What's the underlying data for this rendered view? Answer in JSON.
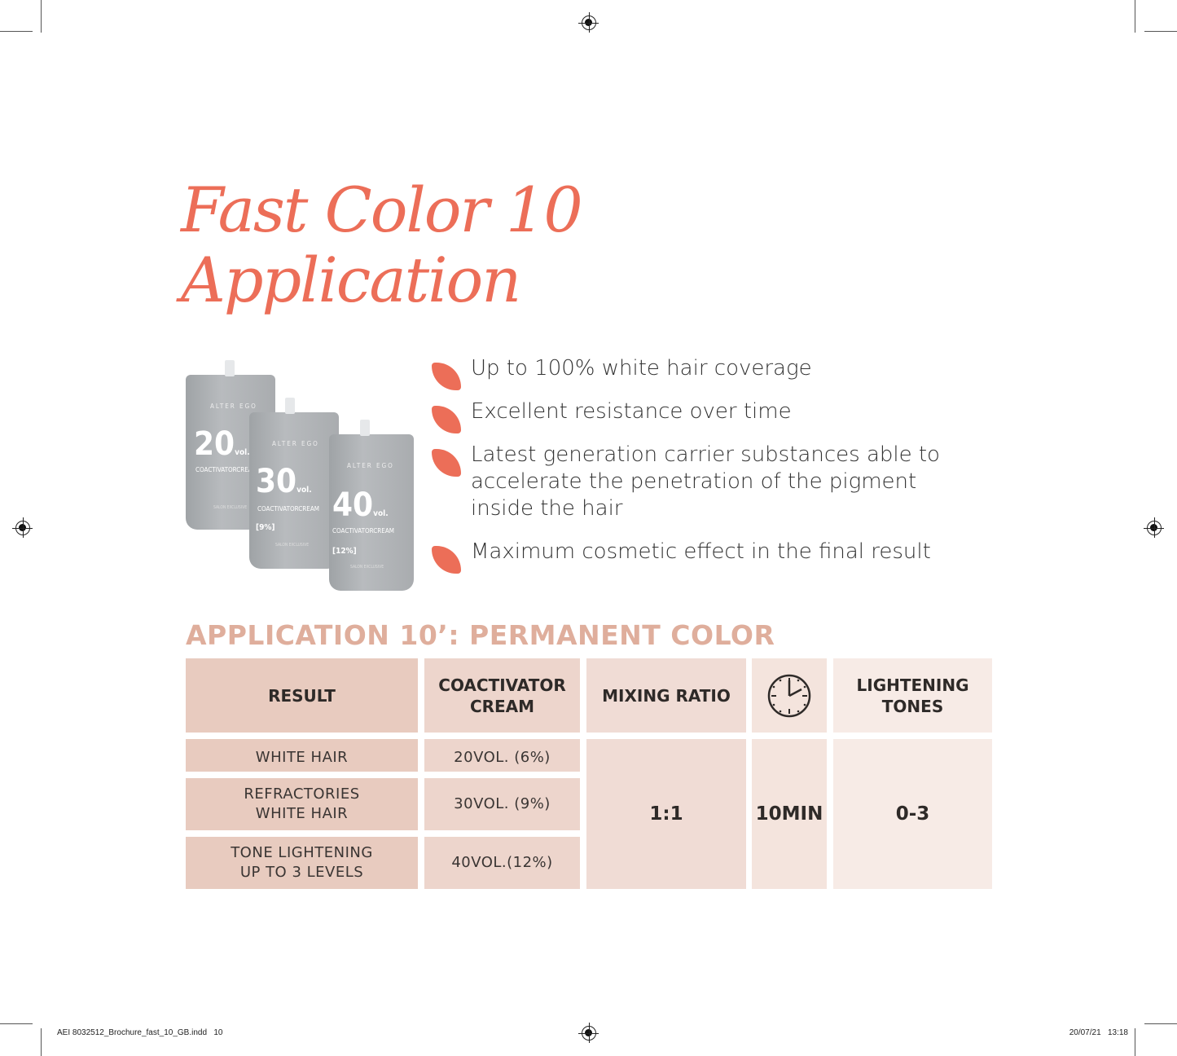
{
  "title": {
    "line1": "Fast Color 10",
    "line2": "Application"
  },
  "products": [
    {
      "brand": "ALTER EGO",
      "volume": "20",
      "unit": "vol.",
      "percent": "",
      "name": "COACTIVATORCREAM",
      "tag": "SALON EXCLUSIVE"
    },
    {
      "brand": "ALTER EGO",
      "volume": "30",
      "unit": "vol.",
      "percent": "[9%]",
      "name": "COACTIVATORCREAM",
      "tag": "SALON EXCLUSIVE"
    },
    {
      "brand": "ALTER EGO",
      "volume": "40",
      "unit": "vol.",
      "percent": "[12%]",
      "name": "COACTIVATORCREAM",
      "tag": "SALON EXCLUSIVE"
    }
  ],
  "bullets": [
    "Up to 100% white hair coverage",
    "Excellent resistance over time",
    "Latest generation carrier substances able to accelerate the penetration of the pigment inside the hair",
    "Maximum cosmetic effect in the final result"
  ],
  "table": {
    "heading": "APPLICATION 10’: PERMANENT COLOR",
    "headers": {
      "result": "RESULT",
      "coactivator": "COACTIVATOR CREAM",
      "mixing": "MIXING RATIO",
      "time_icon": "clock-icon",
      "lightening": "LIGHTENING TONES"
    },
    "rows": [
      {
        "result": "WHITE HAIR",
        "coactivator": "20VOL. (6%)"
      },
      {
        "result": "REFRACTORIES WHITE HAIR",
        "coactivator": "30VOL. (9%)"
      },
      {
        "result": "TONE LIGHTENING UP TO 3 LEVELS",
        "coactivator": "40VOL.(12%)"
      }
    ],
    "mixing_ratio": "1:1",
    "time": "10MIN",
    "lightening_tones": "0-3"
  },
  "footer": {
    "file": "AEI 8032512_Brochure_fast_10_GB.indd   10",
    "date": "20/07/21   13:18"
  },
  "colors": {
    "accent": "#ec6e58",
    "heading": "#dfae9c",
    "col1": "#e8cbbf",
    "col2": "#edd5cc",
    "col3": "#f0dcd5",
    "col4": "#f4e4dd",
    "col5": "#f7ebe6"
  }
}
